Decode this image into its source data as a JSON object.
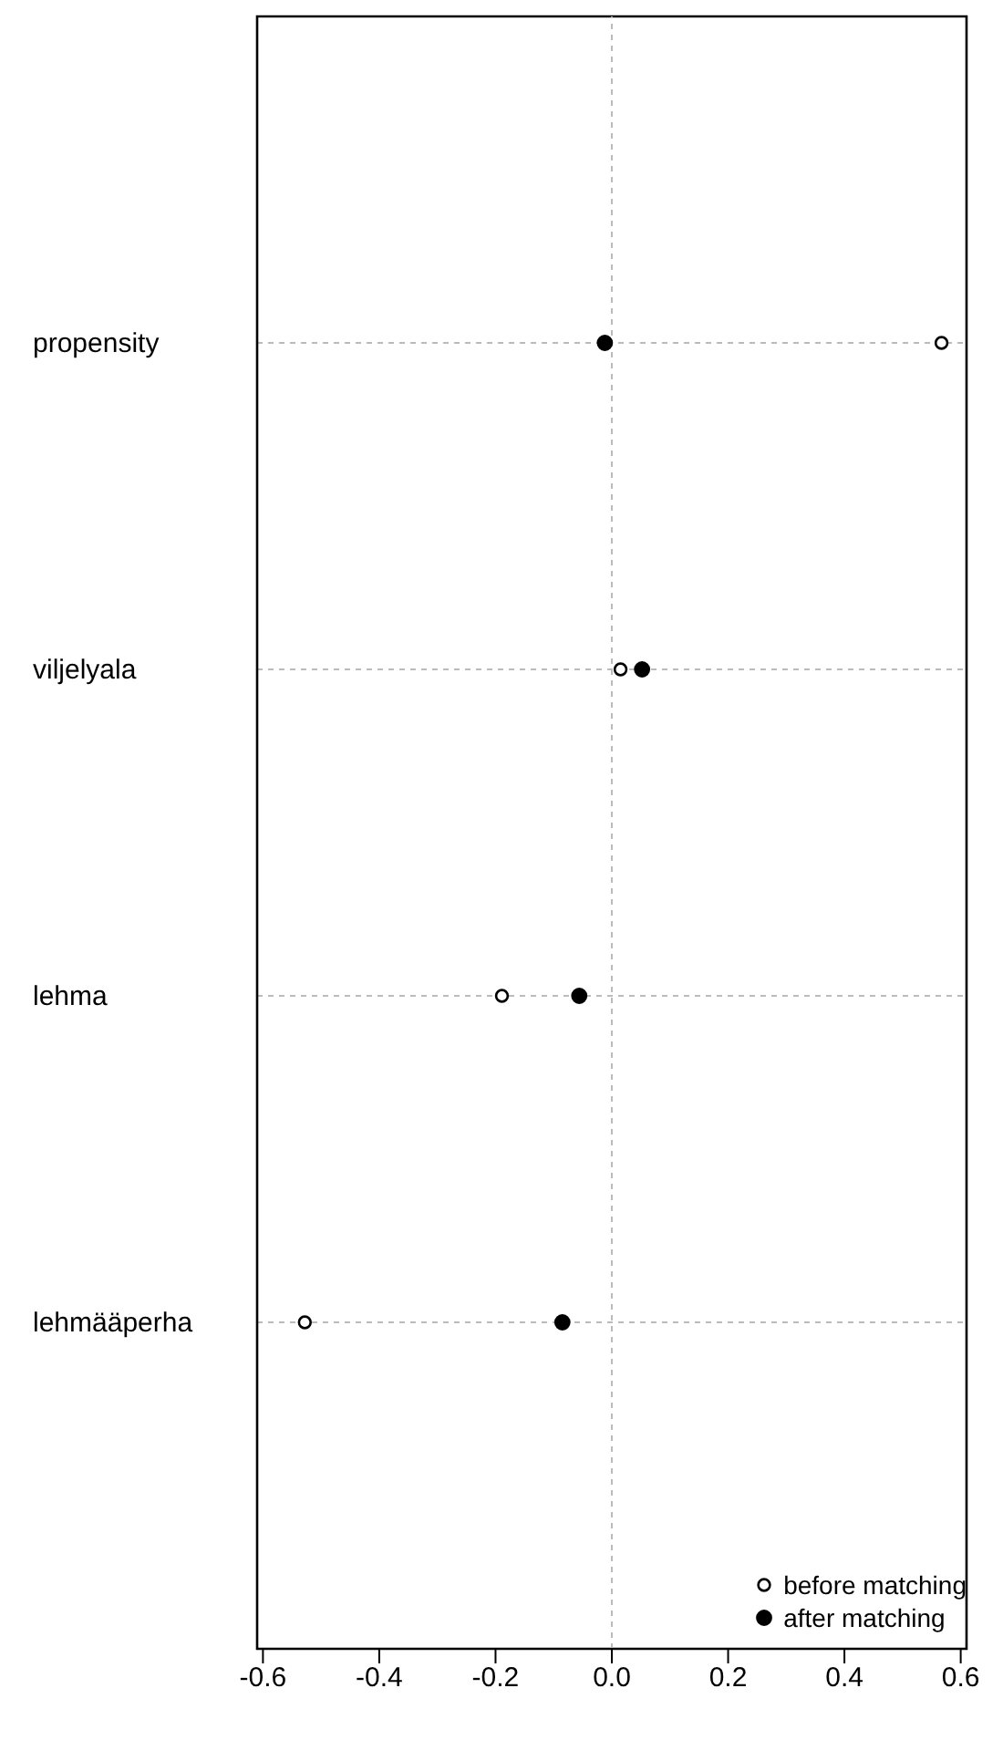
{
  "chart_data": {
    "type": "scatter",
    "orientation": "horizontal",
    "categories": [
      "propensity",
      "viljelyala",
      "lehma",
      "lehmääperha"
    ],
    "series": [
      {
        "name": "before matching",
        "color": "#000000",
        "values": [
          0.567,
          0.015,
          -0.189,
          -0.528
        ]
      },
      {
        "name": "after matching",
        "color": "#000000",
        "values": [
          -0.012,
          0.052,
          -0.056,
          -0.085
        ]
      }
    ],
    "xlim": [
      -0.61,
      0.61
    ],
    "xticks": [
      {
        "value": -0.6,
        "label": "-0.6"
      },
      {
        "value": -0.4,
        "label": "-0.4"
      },
      {
        "value": -0.2,
        "label": "-0.2"
      },
      {
        "value": 0,
        "label": "0.0"
      },
      {
        "value": 0.2,
        "label": "0.2"
      },
      {
        "value": 0.4,
        "label": "0.4"
      },
      {
        "value": 0.6,
        "label": "0.6"
      }
    ],
    "grid": "y",
    "legend": "bottom right",
    "marker": "circle",
    "ref_lines": [
      {
        "axis": "x",
        "value": 0
      }
    ]
  }
}
